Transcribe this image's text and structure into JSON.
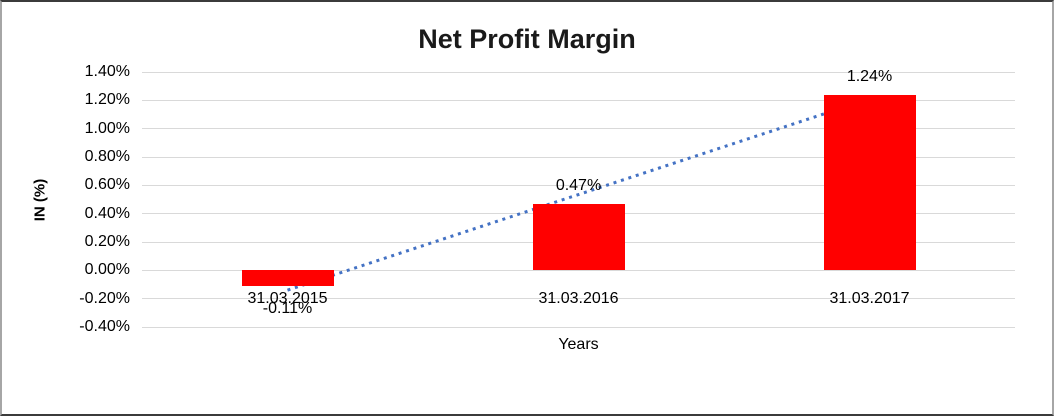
{
  "chart_data": {
    "type": "bar",
    "title": "Net Profit Margin",
    "xlabel": "Years",
    "ylabel": "IN (%)",
    "categories": [
      "31.03.2015",
      "31.03.2016",
      "31.03.2017"
    ],
    "values": [
      -0.11,
      0.47,
      1.24
    ],
    "data_labels": [
      "-0.11%",
      "0.47%",
      "1.24%"
    ],
    "yticks": [
      "1.40%",
      "1.20%",
      "1.00%",
      "0.80%",
      "0.60%",
      "0.40%",
      "0.20%",
      "0.00%",
      "-0.20%",
      "-0.40%"
    ],
    "ylim": [
      -0.4,
      1.4
    ],
    "ytick_interval": 0.2,
    "grid": true,
    "legend": "none",
    "bar_color": "#FF0000",
    "trendline": {
      "type": "linear",
      "style": "dotted",
      "color": "#4472C4",
      "start_value": -0.14,
      "end_value": 1.21
    },
    "colors": {
      "gridline": "#D9D9D9",
      "text": "#000000",
      "title": "#1A1A1A",
      "background": "#FFFFFF"
    }
  }
}
